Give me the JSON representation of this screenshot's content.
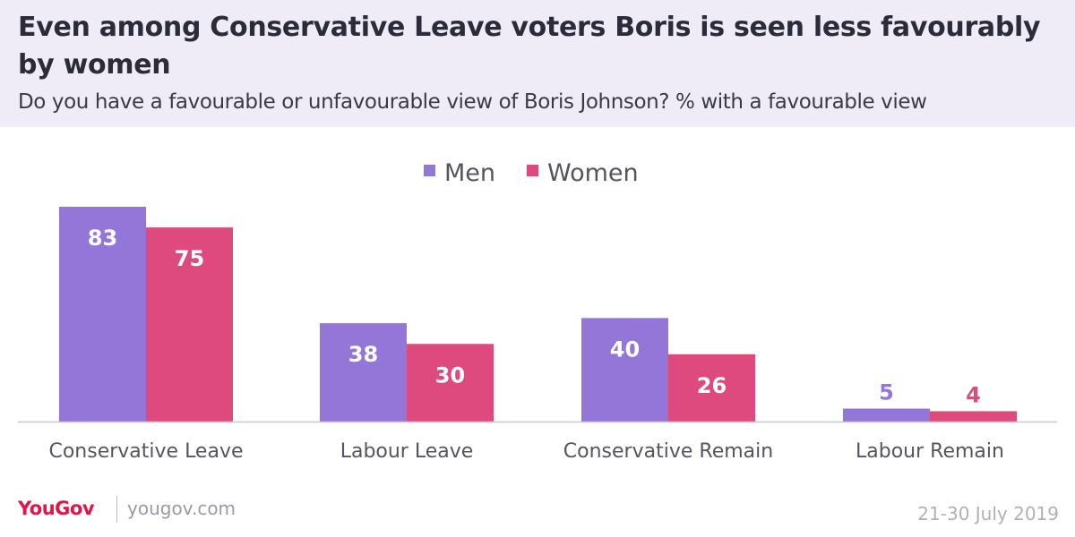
{
  "header": {
    "title": "Even among Conservative Leave voters Boris is seen less favourably by women",
    "subtitle": "Do you have a favourable or unfavourable view of Boris Johnson? % with a favourable view"
  },
  "footer": {
    "logo": "YouGov",
    "site": "yougov.com",
    "date": "21-30 July 2019"
  },
  "colors": {
    "men": "#9376d8",
    "women": "#de4a7e",
    "axis": "#c8c8d0",
    "header_bg": "#efecf8"
  },
  "chart_data": {
    "type": "bar",
    "categories": [
      "Conservative Leave",
      "Labour Leave",
      "Conservative Remain",
      "Labour Remain"
    ],
    "series": [
      {
        "name": "Men",
        "values": [
          83,
          38,
          40,
          5
        ]
      },
      {
        "name": "Women",
        "values": [
          75,
          30,
          26,
          4
        ]
      }
    ],
    "ylim": [
      0,
      83
    ],
    "legend": "top-center",
    "grid": false
  }
}
